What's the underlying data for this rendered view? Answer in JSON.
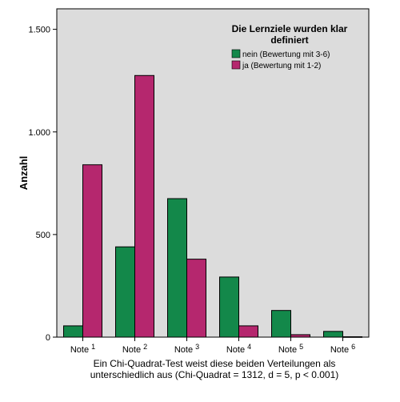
{
  "chart_data": {
    "type": "bar",
    "title": "",
    "ylabel": "Anzahl",
    "xlabel": "",
    "ylim": [
      0,
      1600
    ],
    "yticks": [
      0,
      500,
      1000,
      1500
    ],
    "ytick_labels": [
      "0",
      "500",
      "1.000",
      "1.500"
    ],
    "categories": [
      {
        "base": "Note",
        "num": "1"
      },
      {
        "base": "Note",
        "num": "2"
      },
      {
        "base": "Note",
        "num": "3"
      },
      {
        "base": "Note",
        "num": "4"
      },
      {
        "base": "Note",
        "num": "5"
      },
      {
        "base": "Note",
        "num": "6"
      }
    ],
    "legend": {
      "title_lines": [
        "Die Lernziele wurden klar",
        "definiert"
      ],
      "placement": "top-right"
    },
    "series": [
      {
        "name": "nein (Bewertung mit 3-6)",
        "color": "#13884A",
        "values": [
          55,
          440,
          675,
          293,
          130,
          28
        ]
      },
      {
        "name": "ja (Bewertung mit 1-2)",
        "color": "#B5276E",
        "values": [
          840,
          1275,
          380,
          55,
          12,
          2
        ]
      }
    ],
    "plot_background": "#DCDCDC",
    "grid": false
  },
  "footnote_lines": [
    "Ein Chi-Quadrat-Test weist diese beiden Verteilungen als",
    "unterschiedlich aus (Chi-Quadrat = 1312, d = 5, p < 0.001)"
  ]
}
